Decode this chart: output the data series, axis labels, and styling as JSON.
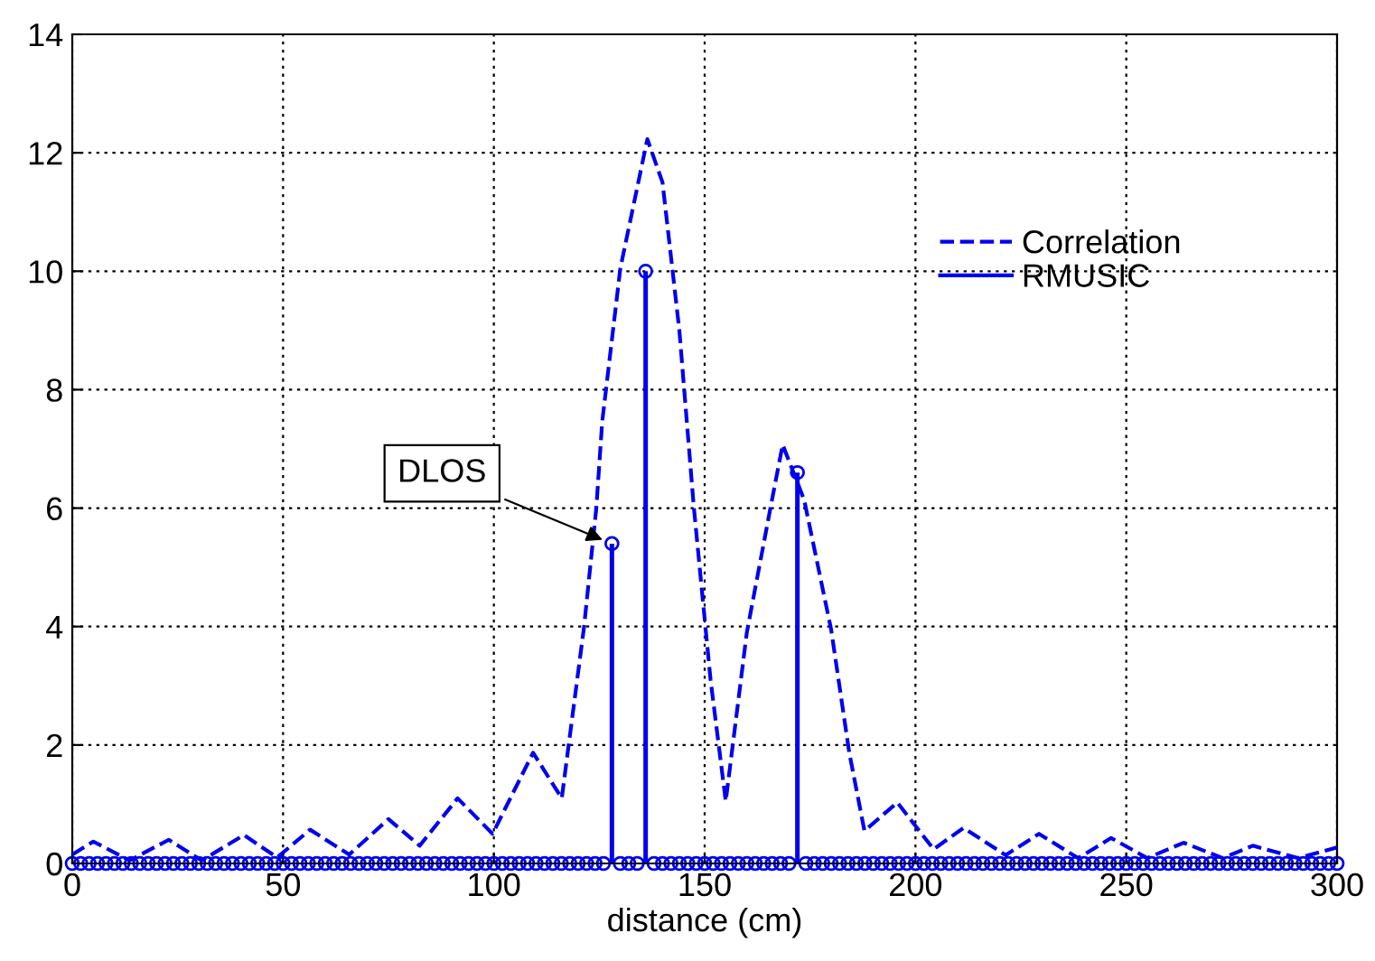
{
  "chart_data": {
    "type": "line",
    "xlabel": "distance (cm)",
    "xlim": [
      0,
      300
    ],
    "xticks": [
      0,
      50,
      100,
      150,
      200,
      250,
      300
    ],
    "ylim": [
      0,
      14
    ],
    "yticks": [
      0,
      2,
      4,
      6,
      8,
      10,
      12,
      14
    ],
    "grid": true,
    "legend": "top right",
    "annotations": [
      {
        "text": "DLOS",
        "x": 128,
        "y": 5.4
      }
    ],
    "series": [
      {
        "name": "Correlation",
        "color": "#0000ee",
        "line_style": "dashed",
        "marker": "none",
        "x": [
          0,
          5,
          13.6,
          22.9,
          30.7,
          40.7,
          48.6,
          56.4,
          65.7,
          75,
          82.4,
          91.4,
          99.7,
          109.3,
          116.1,
          121.4,
          124.3,
          125.7,
          130,
          136.4,
          140,
          144,
          147.4,
          151.4,
          155,
          160,
          165.7,
          168.5,
          173.6,
          180,
          184.3,
          187.9,
          195.7,
          204.3,
          211.4,
          221.4,
          229.3,
          238.6,
          246.4,
          255,
          263.6,
          272.9,
          280,
          290.7,
          300
        ],
        "values": [
          0.15,
          0.37,
          0.05,
          0.4,
          0.05,
          0.48,
          0.1,
          0.57,
          0.15,
          0.75,
          0.3,
          1.1,
          0.5,
          1.87,
          1.1,
          4.0,
          6.0,
          7.46,
          10.05,
          12.23,
          11.5,
          9.0,
          6.04,
          3.1,
          1.05,
          3.9,
          6.04,
          7.07,
          6.14,
          3.95,
          1.87,
          0.55,
          1.03,
          0.24,
          0.6,
          0.14,
          0.5,
          0.09,
          0.43,
          0.09,
          0.35,
          0.09,
          0.3,
          0.09,
          0.27
        ]
      },
      {
        "name": "RMUSIC",
        "type": "lollipop",
        "color": "#0000ee",
        "line_style": "solid",
        "marker": "circle",
        "x": [
          0,
          2,
          4,
          6,
          8,
          10,
          12,
          14,
          16,
          18,
          20,
          22,
          24,
          26,
          28,
          30,
          32,
          34,
          36,
          38,
          40,
          42,
          44,
          46,
          48,
          50,
          52,
          54,
          56,
          58,
          60,
          62,
          64,
          66,
          68,
          70,
          72,
          74,
          76,
          78,
          80,
          82,
          84,
          86,
          88,
          90,
          92,
          94,
          96,
          98,
          100,
          102,
          104,
          106,
          108,
          110,
          112,
          114,
          116,
          118,
          120,
          122,
          124,
          126,
          128,
          130,
          132,
          134,
          136,
          138,
          140,
          142,
          144,
          146,
          148,
          150,
          152,
          154,
          156,
          158,
          160,
          162,
          164,
          166,
          168,
          170,
          172,
          174,
          176,
          178,
          180,
          182,
          184,
          186,
          188,
          190,
          192,
          194,
          196,
          198,
          200,
          202,
          204,
          206,
          208,
          210,
          212,
          214,
          216,
          218,
          220,
          222,
          224,
          226,
          228,
          230,
          232,
          234,
          236,
          238,
          240,
          242,
          244,
          246,
          248,
          250,
          252,
          254,
          256,
          258,
          260,
          262,
          264,
          266,
          268,
          270,
          272,
          274,
          276,
          278,
          280,
          282,
          284,
          286,
          288,
          290,
          292,
          294,
          296,
          298,
          300
        ],
        "values": [
          0,
          0,
          0,
          0,
          0,
          0,
          0,
          0,
          0,
          0,
          0,
          0,
          0,
          0,
          0,
          0,
          0,
          0,
          0,
          0,
          0,
          0,
          0,
          0,
          0,
          0,
          0,
          0,
          0,
          0,
          0,
          0,
          0,
          0,
          0,
          0,
          0,
          0,
          0,
          0,
          0,
          0,
          0,
          0,
          0,
          0,
          0,
          0,
          0,
          0,
          0,
          0,
          0,
          0,
          0,
          0,
          0,
          0,
          0,
          0,
          0,
          0,
          0,
          0,
          5.4,
          0,
          0,
          0,
          10,
          0,
          0,
          0,
          0,
          0,
          0,
          0,
          0,
          0,
          0,
          0,
          0,
          0,
          0,
          0,
          0,
          0,
          6.6,
          0,
          0,
          0,
          0,
          0,
          0,
          0,
          0,
          0,
          0,
          0,
          0,
          0,
          0,
          0,
          0,
          0,
          0,
          0,
          0,
          0,
          0,
          0,
          0,
          0,
          0,
          0,
          0,
          0,
          0,
          0,
          0,
          0,
          0,
          0,
          0,
          0,
          0,
          0,
          0,
          0,
          0,
          0,
          0,
          0,
          0,
          0,
          0,
          0,
          0,
          0,
          0,
          0,
          0,
          0,
          0,
          0,
          0,
          0,
          0,
          0,
          0,
          0,
          0
        ]
      }
    ]
  }
}
